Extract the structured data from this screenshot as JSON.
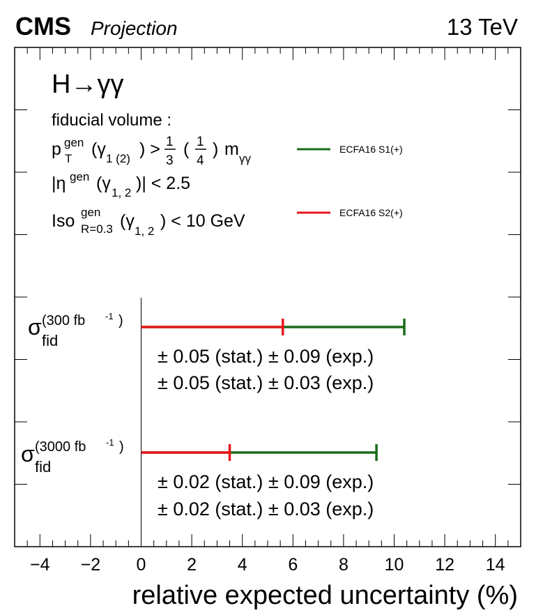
{
  "header": {
    "experiment": "CMS",
    "status": "Projection",
    "energy": "13 TeV"
  },
  "process": "H→γγ",
  "fiducial": {
    "title": "fiducial volume :",
    "cut1": {
      "var": "p",
      "sup": "gen",
      "sub": "T",
      "obj": "(γ",
      "objsub": "1 (2)",
      "rest": ") > ",
      "f1n": "1",
      "f1d": "3",
      "f2n": "1",
      "f2d": "4",
      "tail": "m",
      "tailsub": "γγ"
    },
    "cut2": {
      "var": "|η",
      "sup": "gen",
      "obj": "(γ",
      "objsub": "1, 2",
      "rest": ")| < 2.5"
    },
    "cut3": {
      "var": "Iso",
      "sup": "gen",
      "sub": "R=0.3",
      "obj": "(γ",
      "objsub": "1, 2",
      "rest": ") < 10 GeV"
    }
  },
  "legend": [
    {
      "label": "ECFA16 S1(+)",
      "color": "#1a6b1a"
    },
    {
      "label": "ECFA16 S2(+)",
      "color": "#e8161b"
    }
  ],
  "chart_data": {
    "type": "bar",
    "orientation": "horizontal",
    "xlabel": "relative expected uncertainty (%)",
    "xlim": [
      -5,
      15
    ],
    "xticks": [
      -4,
      -2,
      0,
      2,
      4,
      6,
      8,
      10,
      12,
      14
    ],
    "categories": [
      {
        "label": "σ",
        "sub": "fid",
        "sup": "(300 fb",
        "supexp": "-1",
        "supend": ")"
      },
      {
        "label": "σ",
        "sub": "fid",
        "sup": "(3000 fb",
        "supexp": "-1",
        "supend": ")"
      }
    ],
    "series": [
      {
        "name": "ECFA16 S1(+)",
        "color": "#1a6b1a",
        "values": [
          10.4,
          9.3
        ],
        "labels": [
          "± 0.05 (stat.) ± 0.09 (exp.)",
          "± 0.02 (stat.) ± 0.09 (exp.)"
        ]
      },
      {
        "name": "ECFA16 S2(+)",
        "color": "#e8161b",
        "values": [
          5.6,
          3.5
        ],
        "labels": [
          "± 0.05 (stat.) ± 0.03 (exp.)",
          "± 0.02 (stat.) ± 0.03 (exp.)"
        ]
      }
    ]
  }
}
